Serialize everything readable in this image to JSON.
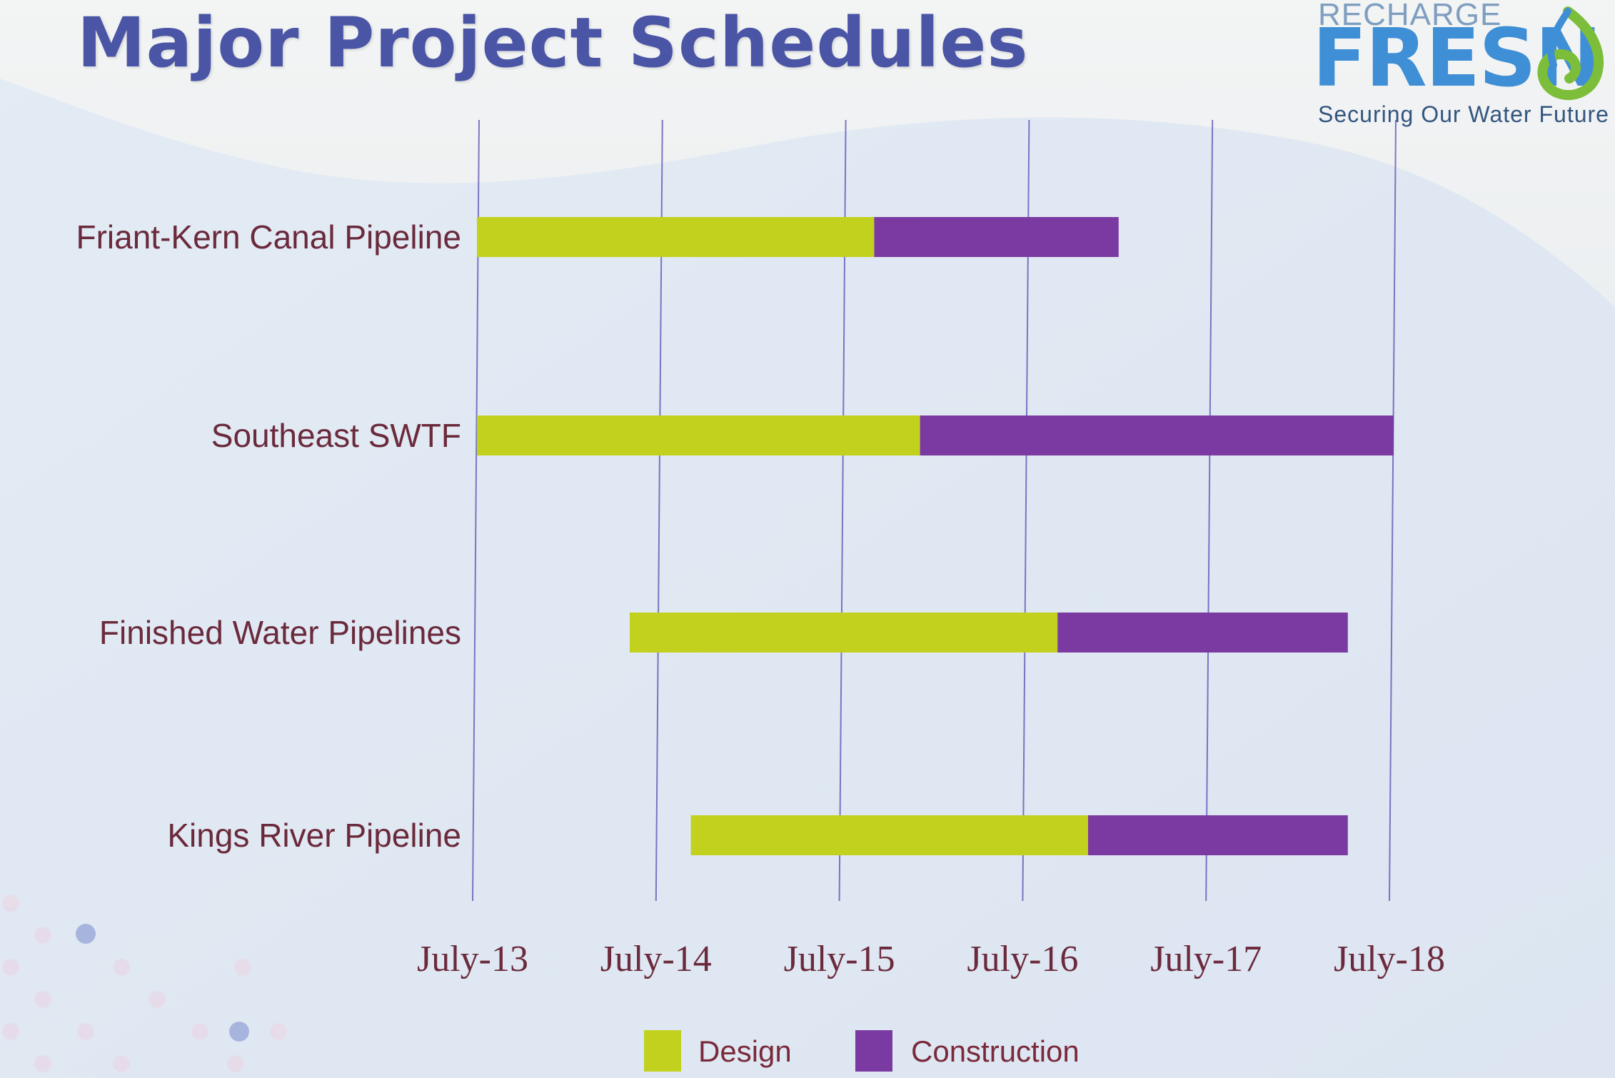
{
  "page": {
    "title": "Major Project Schedules"
  },
  "logo": {
    "top_text": "RECHARGE",
    "main_text": "FRESN",
    "tagline": "Securing Our Water Future"
  },
  "colors": {
    "design": "#c2d11d",
    "construction": "#7b3aa1",
    "gridline": "#5a4cb3",
    "label": "#6b2a3c",
    "title": "#4a55a6"
  },
  "chart_data": {
    "type": "bar",
    "orientation": "horizontal",
    "stacked": true,
    "title": "Major Project Schedules",
    "x_axis": {
      "type": "date",
      "ticks": [
        "July-13",
        "July-14",
        "July-15",
        "July-16",
        "July-17",
        "July-18"
      ],
      "range": [
        "2013-07",
        "2018-07"
      ]
    },
    "grid": "vertical lines at ticks",
    "legend": {
      "position": "bottom-center"
    },
    "series": [
      {
        "name": "Design",
        "color": "#c2d11d"
      },
      {
        "name": "Construction",
        "color": "#7b3aa1"
      }
    ],
    "categories": [
      "Friant-Kern Canal Pipeline",
      "Southeast SWTF",
      "Finished Water Pipelines",
      "Kings River Pipeline"
    ],
    "tasks": [
      {
        "category": "Friant-Kern Canal Pipeline",
        "design": [
          "2013-07",
          "2015-09"
        ],
        "construction": [
          "2015-09",
          "2017-01"
        ]
      },
      {
        "category": "Southeast SWTF",
        "design": [
          "2013-07",
          "2015-12"
        ],
        "construction": [
          "2015-12",
          "2018-07"
        ]
      },
      {
        "category": "Finished Water Pipelines",
        "design": [
          "2014-05",
          "2016-09"
        ],
        "construction": [
          "2016-09",
          "2018-04"
        ]
      },
      {
        "category": "Kings River Pipeline",
        "design": [
          "2014-09",
          "2016-11"
        ],
        "construction": [
          "2016-11",
          "2018-04"
        ]
      }
    ]
  }
}
